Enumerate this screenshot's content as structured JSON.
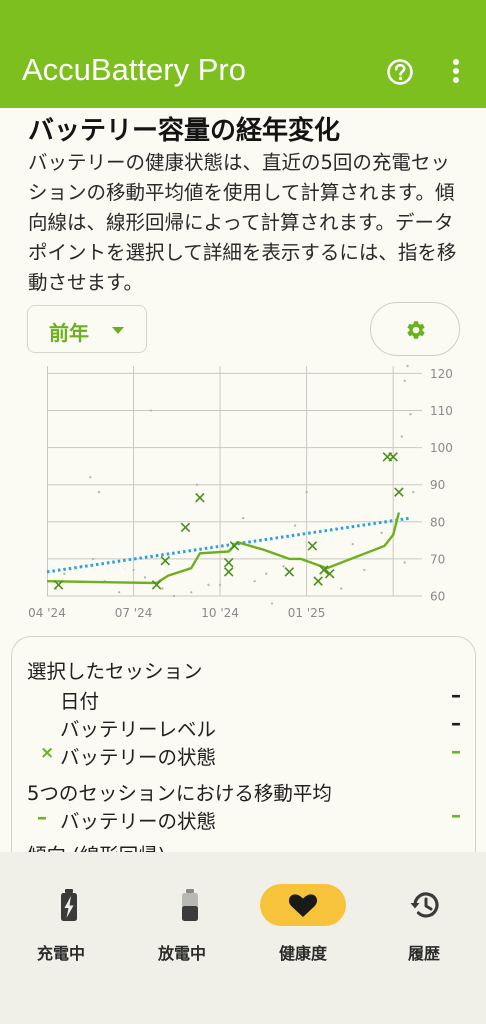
{
  "app_bar": {
    "title": "AccuBattery Pro",
    "help_icon": "help-circle-icon",
    "menu_icon": "more-vert-icon"
  },
  "section": {
    "title": "バッテリー容量の経年変化",
    "description": "バッテリーの健康状態は、直近の5回の充電セッションの移動平均値を使用して計算されます。傾向線は、線形回帰によって計算されます。データポイントを選択して詳細を表示するには、指を移動させます。"
  },
  "controls": {
    "period_label": "前年",
    "settings_icon": "gear-icon"
  },
  "chart_data": {
    "type": "scatter",
    "x_labels": [
      "04 '24",
      "07 '24",
      "10 '24",
      "01 '25"
    ],
    "y_ticks": [
      60,
      70,
      80,
      90,
      100,
      110,
      120
    ],
    "ylim": [
      60,
      122
    ],
    "xlim": [
      0,
      13
    ],
    "grid": true,
    "series": [
      {
        "marker": "x",
        "x": [
          0.4,
          3.8,
          4.1,
          4.8,
          5.3,
          6.3,
          6.3,
          6.5,
          8.4,
          9.2,
          9.4,
          9.6,
          9.8,
          11.8,
          12.0,
          12.2
        ],
        "y": [
          63,
          63,
          69.5,
          78.5,
          86.5,
          69,
          66.5,
          73.5,
          66.5,
          73.5,
          64,
          67,
          66,
          97.5,
          97.5,
          88
        ]
      },
      {
        "type": "line",
        "x": [
          0,
          3.8,
          4.2,
          5.0,
          5.3,
          6.3,
          6.6,
          7.5,
          8.4,
          8.8,
          9.7,
          11.7,
          12.0,
          12.2
        ],
        "y": [
          64,
          63.5,
          65.5,
          67.5,
          71.5,
          72,
          74.5,
          72.5,
          70,
          70,
          67.5,
          73.5,
          76.5,
          82.5
        ]
      },
      {
        "type": "line",
        "style": "dotted",
        "x": [
          0,
          12.6
        ],
        "y": [
          66.5,
          81
        ]
      }
    ],
    "colors": {
      "line": "#6bb11d",
      "trend": "#2aa0de",
      "grid": "#c9c9c2",
      "marker": "#4a8f1c"
    }
  },
  "legend": {
    "selected_session": "選択したセッション",
    "date_label": "日付",
    "date_value": "–",
    "battery_level_label": "バッテリーレベル",
    "battery_level_value": "–",
    "battery_health_label": "バッテリーの状態",
    "battery_health_value": "–",
    "moving_avg_heading": "5つのセッションにおける移動平均",
    "moving_avg_health_label": "バッテリーの状態",
    "moving_avg_health_value": "–",
    "trend_heading": "傾向 (線形回帰)",
    "marker_x": "×",
    "marker_dash": "–"
  },
  "bottom_nav": {
    "items": [
      {
        "label": "充電中",
        "icon": "battery-charging-icon",
        "active": false
      },
      {
        "label": "放電中",
        "icon": "battery-icon",
        "active": false
      },
      {
        "label": "健康度",
        "icon": "heart-icon",
        "active": true
      },
      {
        "label": "履歴",
        "icon": "history-icon",
        "active": false
      }
    ]
  }
}
